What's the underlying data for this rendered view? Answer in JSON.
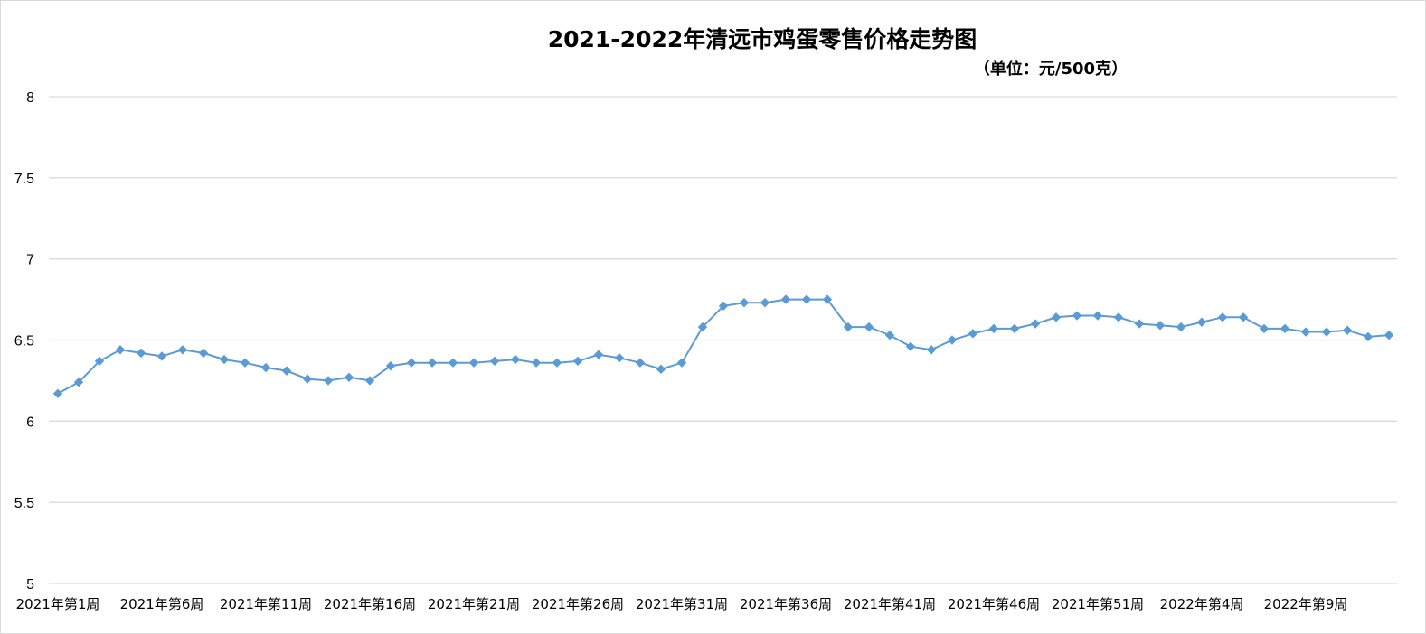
{
  "chart_data": {
    "type": "line",
    "title": "2021-2022年清远市鸡蛋零售价格走势图",
    "subtitle": "（单位：元/500克）",
    "ylim": [
      5,
      8
    ],
    "y_ticks": [
      5,
      5.5,
      6,
      6.5,
      7,
      7.5,
      8
    ],
    "grid": true,
    "legend": "none",
    "x_tick_labels": [
      "2021年第1周",
      "2021年第6周",
      "2021年第11周",
      "2021年第16周",
      "2021年第21周",
      "2021年第26周",
      "2021年第31周",
      "2021年第36周",
      "2021年第41周",
      "2021年第46周",
      "2021年第51周",
      "2022年第4周",
      "2022年第9周"
    ],
    "series": [
      {
        "color": "#5b9bd5",
        "values": [
          6.17,
          6.24,
          6.37,
          6.44,
          6.42,
          6.4,
          6.44,
          6.42,
          6.38,
          6.36,
          6.33,
          6.31,
          6.26,
          6.25,
          6.27,
          6.25,
          6.34,
          6.36,
          6.36,
          6.36,
          6.36,
          6.37,
          6.38,
          6.36,
          6.36,
          6.37,
          6.41,
          6.39,
          6.36,
          6.32,
          6.36,
          6.58,
          6.71,
          6.73,
          6.73,
          6.75,
          6.75,
          6.75,
          6.58,
          6.58,
          6.53,
          6.46,
          6.44,
          6.5,
          6.54,
          6.57,
          6.57,
          6.6,
          6.64,
          6.65,
          6.65,
          6.64,
          6.6,
          6.59,
          6.58,
          6.61,
          6.64,
          6.64,
          6.57,
          6.57,
          6.55,
          6.55,
          6.56,
          6.52,
          6.53
        ]
      }
    ]
  }
}
